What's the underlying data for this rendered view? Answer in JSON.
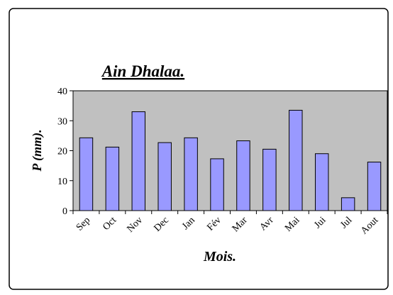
{
  "chart_data": {
    "type": "bar",
    "title": "Ain Dhalaa.",
    "y_label": "P (mm).",
    "x_label": "Mois.",
    "categories": [
      "Sep",
      "Oct",
      "Nov",
      "Dec",
      "Jan",
      "Fév",
      "Mar",
      "Avr",
      "Mai",
      "Jui",
      "Jul",
      "Aout"
    ],
    "values": [
      24.3,
      21.2,
      33,
      22.7,
      24.3,
      17.3,
      23.3,
      20.5,
      33.5,
      19,
      4.3,
      16.2
    ],
    "color": "#9999ff",
    "plot_background": "#c0c0c0",
    "ylim": [
      0,
      40
    ],
    "yticks": [
      0,
      10,
      20,
      30,
      40
    ],
    "grid": false
  }
}
